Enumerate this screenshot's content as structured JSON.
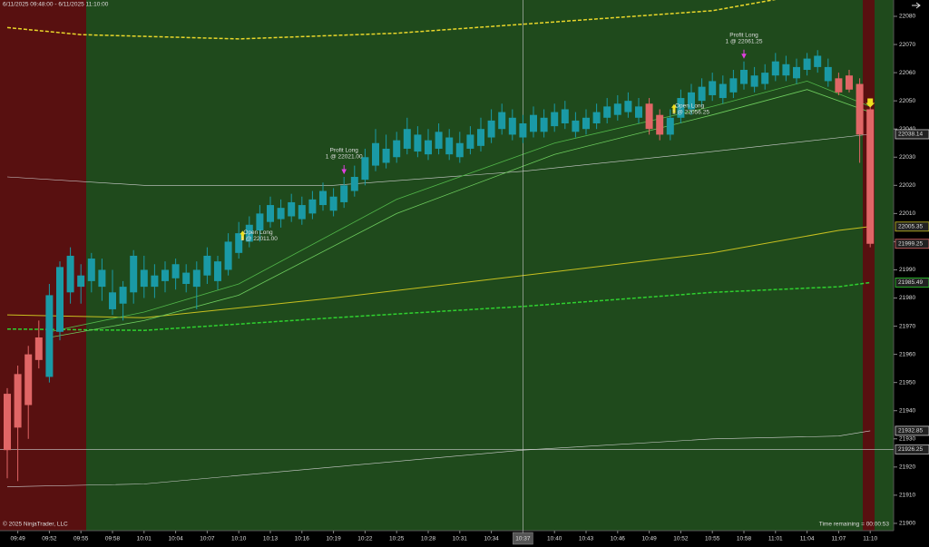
{
  "chart_data": {
    "type": "candlestick",
    "title": "6/11/2025 09:48:00 - 6/11/2025 11:10:00",
    "copyright": "© 2025 NinjaTrader, LLC",
    "status": "Time remaining = 00:00:53",
    "categories": [
      null,
      "09:49",
      null,
      null,
      "09:52",
      null,
      null,
      "09:55",
      null,
      null,
      "09:58",
      null,
      null,
      "10:01",
      null,
      null,
      "10:04",
      null,
      null,
      "10:07",
      null,
      null,
      "10:10",
      null,
      null,
      "10:13",
      null,
      null,
      "10:16",
      null,
      null,
      "10:19",
      null,
      null,
      "10:22",
      null,
      null,
      "10:25",
      null,
      null,
      "10:28",
      null,
      null,
      "10:31",
      null,
      null,
      "10:34",
      null,
      null,
      "10:37",
      null,
      null,
      "10:40",
      null,
      null,
      "10:43",
      null,
      null,
      "10:46",
      null,
      null,
      "10:49",
      null,
      null,
      "10:52",
      null,
      null,
      "10:55",
      null,
      null,
      "10:58",
      null,
      null,
      "11:01",
      null,
      null,
      "11:04",
      null,
      null,
      "11:07",
      null,
      null,
      "11:10"
    ],
    "candles": [
      [
        21946,
        21948,
        21916,
        21926
      ],
      [
        21953,
        21956,
        21915,
        21934
      ],
      [
        21960,
        21963,
        21930,
        21942
      ],
      [
        21966,
        21972,
        21955,
        21958
      ],
      [
        21952,
        21985,
        21950,
        21981
      ],
      [
        21968,
        21993,
        21965,
        21991
      ],
      [
        21982,
        21998,
        21978,
        21995
      ],
      [
        21984,
        21992,
        21978,
        21988
      ],
      [
        21986,
        21996,
        21982,
        21994
      ],
      [
        21984,
        21994,
        21979,
        21990
      ],
      [
        21976,
        21990,
        21974,
        21982
      ],
      [
        21978,
        21986,
        21972,
        21984
      ],
      [
        21982,
        21997,
        21978,
        21995
      ],
      [
        21984,
        21995,
        21980,
        21990
      ],
      [
        21984,
        21992,
        21980,
        21988
      ],
      [
        21986,
        21993,
        21982,
        21990
      ],
      [
        21987,
        21994,
        21983,
        21992
      ],
      [
        21985,
        21992,
        21982,
        21989
      ],
      [
        21984,
        21993,
        21976,
        21990
      ],
      [
        21988,
        21998,
        21985,
        21995
      ],
      [
        21986,
        21995,
        21983,
        21993
      ],
      [
        21990,
        22003,
        21988,
        22000
      ],
      [
        21996,
        22007,
        21994,
        22003
      ],
      [
        22000,
        22009,
        21998,
        22006
      ],
      [
        22004,
        22013,
        22000,
        22010
      ],
      [
        22007,
        22016,
        22005,
        22013
      ],
      [
        22008,
        22015,
        22005,
        22012
      ],
      [
        22009,
        22017,
        22007,
        22014
      ],
      [
        22008,
        22016,
        22006,
        22013
      ],
      [
        22010,
        22018,
        22008,
        22015
      ],
      [
        22013,
        22021,
        22011,
        22018
      ],
      [
        22011,
        22019,
        22009,
        22016
      ],
      [
        22014,
        22023,
        22012,
        22020
      ],
      [
        22018,
        22027,
        22016,
        22023
      ],
      [
        22022,
        22033,
        22020,
        22030
      ],
      [
        22027,
        22040,
        22025,
        22035
      ],
      [
        22028,
        22038,
        22026,
        22033
      ],
      [
        22030,
        22039,
        22028,
        22036
      ],
      [
        22033,
        22044,
        22031,
        22040
      ],
      [
        22032,
        22041,
        22030,
        22038
      ],
      [
        22031,
        22040,
        22029,
        22036
      ],
      [
        22033,
        22042,
        22031,
        22039
      ],
      [
        22031,
        22040,
        22029,
        22037
      ],
      [
        22030,
        22039,
        22028,
        22035
      ],
      [
        22033,
        22041,
        22031,
        22038
      ],
      [
        22034,
        22044,
        22032,
        22040
      ],
      [
        22037,
        22047,
        22035,
        22043
      ],
      [
        22040,
        22049,
        22038,
        22046
      ],
      [
        22038,
        22047,
        22036,
        22044
      ],
      [
        22037,
        22045,
        22035,
        22042
      ],
      [
        22039,
        22048,
        22037,
        22045
      ],
      [
        22039,
        22047,
        22037,
        22044
      ],
      [
        22041,
        22049,
        22039,
        22046
      ],
      [
        22042,
        22050,
        22040,
        22047
      ],
      [
        22039,
        22046,
        22037,
        22043
      ],
      [
        22040,
        22047,
        22038,
        22044
      ],
      [
        22042,
        22049,
        22040,
        22046
      ],
      [
        22044,
        22051,
        22042,
        22048
      ],
      [
        22045,
        22052,
        22043,
        22049
      ],
      [
        22046,
        22053,
        22044,
        22050
      ],
      [
        22044,
        22051,
        22042,
        22048
      ],
      [
        22049,
        22051,
        22038,
        22040
      ],
      [
        22045,
        22047,
        22036,
        22038
      ],
      [
        22038,
        22047,
        22036,
        22044
      ],
      [
        22044,
        22054,
        22042,
        22051
      ],
      [
        22047,
        22056,
        22045,
        22053
      ],
      [
        22050,
        22058,
        22048,
        22055
      ],
      [
        22052,
        22060,
        22050,
        22057
      ],
      [
        22051,
        22059,
        22049,
        22056
      ],
      [
        22053,
        22061,
        22051,
        22058
      ],
      [
        22056,
        22064,
        22054,
        22061
      ],
      [
        22055,
        22062,
        22053,
        22059
      ],
      [
        22056,
        22063,
        22054,
        22060
      ],
      [
        22059,
        22067,
        22057,
        22064
      ],
      [
        22059,
        22066,
        22057,
        22063
      ],
      [
        22058,
        22065,
        22056,
        22062
      ],
      [
        22061,
        22067,
        22059,
        22065
      ],
      [
        22062,
        22068,
        22060,
        22066
      ],
      [
        22057,
        22065,
        22055,
        22062
      ],
      [
        22058,
        22060,
        22052,
        22053
      ],
      [
        22059,
        22061,
        22053,
        22054
      ],
      [
        22056,
        22058,
        22028,
        22038
      ],
      [
        22047,
        22050,
        21998,
        21999.25
      ]
    ],
    "up_color": "#1a9aa6",
    "down_color": "#e06666",
    "ylim": [
      21897.4,
      22085.8
    ],
    "yticks": [
      21900,
      21910,
      21920,
      21930,
      21940,
      21950,
      21960,
      21970,
      21980,
      21990,
      22000,
      22010,
      22020,
      22030,
      22040,
      22050,
      22060,
      22070,
      22080
    ],
    "overlays": [
      {
        "color": "#e8d62a",
        "dash": true,
        "width": 1.5,
        "x": [
          "09:48",
          "09:55",
          "10:10",
          "10:25",
          "10:40",
          "10:55",
          "11:01"
        ],
        "values": [
          22076,
          22073.5,
          22072,
          22074,
          22078,
          22082,
          22086
        ]
      },
      {
        "color": "#2fd12f",
        "dash": true,
        "width": 1.5,
        "x": [
          "09:48",
          "10:01",
          "10:19",
          "10:37",
          "10:55",
          "11:07",
          "11:10"
        ],
        "values": [
          21969,
          21968.5,
          21973,
          21977,
          21982,
          21984,
          21985.49
        ]
      },
      {
        "color": "#c8c020",
        "dash": false,
        "width": 1,
        "x": [
          "09:48",
          "10:01",
          "10:19",
          "10:37",
          "10:55",
          "11:07",
          "11:10"
        ],
        "values": [
          21974,
          21973,
          21980,
          21988,
          21996,
          22004,
          22005.35
        ]
      },
      {
        "color": "#cfcfcf",
        "dash": false,
        "width": 0.6,
        "x": [
          "09:48",
          "10:01",
          "10:19",
          "10:37",
          "10:55",
          "11:10"
        ],
        "values": [
          22023,
          22020,
          22020,
          22025,
          22032,
          22038.14
        ]
      },
      {
        "color": "#cfcfcf",
        "dash": false,
        "width": 0.6,
        "x": [
          "09:48",
          "10:01",
          "10:19",
          "10:37",
          "10:55",
          "11:07",
          "11:10"
        ],
        "values": [
          21913,
          21914,
          21920,
          21926,
          21930,
          21931,
          21932.85
        ]
      },
      {
        "color": "#52b84a",
        "dash": false,
        "width": 0.8,
        "x": [
          "09:52",
          "10:01",
          "10:10",
          "10:25",
          "10:40",
          "10:55",
          "11:04",
          "11:10"
        ],
        "values": [
          21968,
          21975,
          21985,
          22015,
          22035,
          22048,
          22057,
          22048
        ]
      },
      {
        "color": "#6fcf5f",
        "dash": false,
        "width": 0.8,
        "x": [
          "09:52",
          "10:01",
          "10:10",
          "10:25",
          "10:40",
          "10:55",
          "11:04",
          "11:10"
        ],
        "values": [
          21966,
          21972,
          21981,
          22010,
          22031,
          22045,
          22054,
          22046
        ]
      }
    ],
    "price_markers": [
      {
        "value": 22038.14,
        "color": "#cfcfcf"
      },
      {
        "value": 22005.35,
        "color": "#c8c020"
      },
      {
        "value": 21999.25,
        "color": "#e06666"
      },
      {
        "value": 21985.49,
        "color": "#2fd12f"
      },
      {
        "value": 21932.85,
        "color": "#cfcfcf"
      },
      {
        "value": 21926.25,
        "color": "#bbbbbb"
      }
    ],
    "crosshair": {
      "x": "10:37",
      "y": 21926.25
    },
    "annotations": [
      {
        "bar": "10:20",
        "side": "above",
        "text": "Profit Long",
        "detail": "1 @ 22021.00",
        "color": "#e040e0"
      },
      {
        "bar": "10:12",
        "side": "below",
        "text": "Open Long",
        "detail": "1 @ 22011.00",
        "color": "#f0e020"
      },
      {
        "bar": "10:58",
        "side": "above",
        "text": "Profit Long",
        "detail": "1 @ 22061.25",
        "color": "#e040e0"
      },
      {
        "bar": "10:53",
        "side": "below",
        "text": "Open Long",
        "detail": "1 @ 22056.25",
        "color": "#f0e020"
      }
    ]
  }
}
